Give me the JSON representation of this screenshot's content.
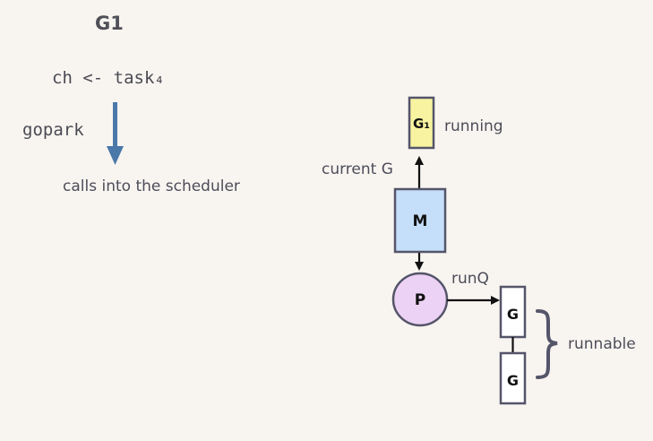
{
  "code_panel": {
    "goroutine_title": "G1",
    "send_statement": "ch <- task₄",
    "gopark_label": "gopark",
    "scheduler_note": "calls into the scheduler"
  },
  "diagram": {
    "running_g_box": "G₁",
    "running_label": "running",
    "current_g_label": "current G",
    "machine_box": "M",
    "processor_node": "P",
    "runq_label": "runQ",
    "runnable_g_boxes": [
      "G",
      "G"
    ],
    "runnable_label": "runnable"
  },
  "colors": {
    "background": "#f8f5f1",
    "gopark_arrow": "#4a78a8",
    "running_g_fill": "#f8f3a0",
    "machine_fill": "#c5defa",
    "processor_fill": "#ecd2f4",
    "runnable_g_fill": "#ffffff",
    "outline": "#55556a"
  }
}
